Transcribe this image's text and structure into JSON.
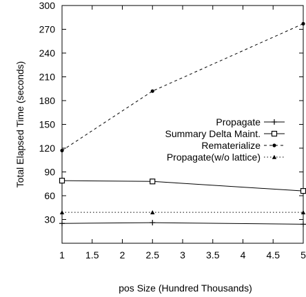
{
  "chart_data": {
    "type": "line",
    "title": "",
    "xlabel": "pos Size (Hundred Thousands)",
    "ylabel": "Total Elapsed Time (seconds)",
    "xlim": [
      1,
      5
    ],
    "ylim": [
      0,
      300
    ],
    "xticks": [
      1,
      1.5,
      2,
      2.5,
      3,
      3.5,
      4,
      4.5,
      5
    ],
    "xtick_labels": [
      "1",
      "1.5",
      "2",
      "2.5",
      "3",
      "3.5",
      "4",
      "4.5",
      "5"
    ],
    "yticks": [
      30,
      60,
      90,
      120,
      150,
      180,
      210,
      240,
      270,
      300
    ],
    "ytick_labels": [
      "30",
      "60",
      "90",
      "120",
      "150",
      "180",
      "210",
      "240",
      "270",
      "300"
    ],
    "grid": false,
    "legend_position": "right",
    "series": [
      {
        "name": "Propagate",
        "x": [
          1,
          2.5,
          5
        ],
        "values": [
          25,
          26,
          24
        ],
        "line_style": "solid",
        "marker": "plus"
      },
      {
        "name": "Summary Delta Maint.",
        "x": [
          1,
          2.5,
          5
        ],
        "values": [
          79,
          78,
          66
        ],
        "line_style": "solid",
        "marker": "open-square"
      },
      {
        "name": "Rematerialize",
        "x": [
          1,
          2.5,
          5
        ],
        "values": [
          117,
          192,
          277
        ],
        "line_style": "dashed",
        "marker": "dot"
      },
      {
        "name": "Propagate(w/o lattice)",
        "x": [
          1,
          2.5,
          5
        ],
        "values": [
          39,
          39,
          39
        ],
        "line_style": "dotted",
        "marker": "triangle"
      }
    ]
  }
}
